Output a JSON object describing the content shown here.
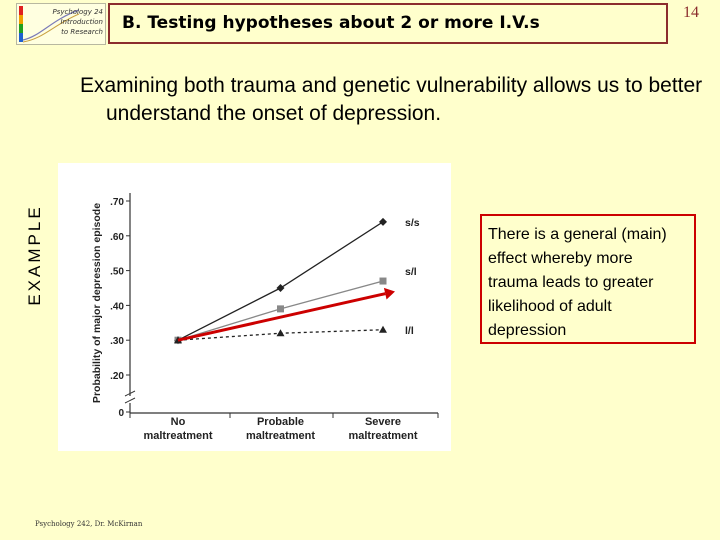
{
  "logo": {
    "line1": "Psychology 24",
    "line2": "Introduction",
    "line3": "to Research",
    "colors": [
      "#e02020",
      "#f0a000",
      "#20a020",
      "#2060d0"
    ]
  },
  "header": {
    "title": "B. Testing hypotheses about 2 or more I.V.s",
    "page_number": "14"
  },
  "intro_text": "Examining both trauma and genetic vulnerability allows us to better understand the onset of depression.",
  "side_label": "EXAMPLE",
  "callout_text": "There is a general (main) effect whereby more trauma leads to greater likelihood of adult depression",
  "footer": "Psychology 242, Dr. McKirnan",
  "chart_data": {
    "type": "line",
    "ylabel": "Probability of major depression episode",
    "categories": [
      [
        "No",
        "maltreatment"
      ],
      [
        "Probable",
        "maltreatment"
      ],
      [
        "Severe",
        "maltreatment"
      ]
    ],
    "ylim": [
      0,
      0.7
    ],
    "yticks": [
      ".70",
      ".60",
      ".50",
      ".40",
      ".30",
      ".20",
      "0"
    ],
    "ytick_values": [
      0.7,
      0.6,
      0.5,
      0.4,
      0.3,
      0.2,
      0
    ],
    "axis_break": true,
    "series": [
      {
        "name": "s/s",
        "values": [
          0.3,
          0.45,
          0.64
        ],
        "color": "#222222",
        "marker": "diamond",
        "dash": false
      },
      {
        "name": "s/l",
        "values": [
          0.3,
          0.39,
          0.47
        ],
        "color": "#888888",
        "marker": "square",
        "dash": false
      },
      {
        "name": "l/l",
        "values": [
          0.3,
          0.32,
          0.33
        ],
        "color": "#222222",
        "marker": "triangle",
        "dash": true
      }
    ],
    "annotation": {
      "type": "arrow",
      "color": "#cc0000",
      "from": [
        0,
        0.3
      ],
      "to": [
        2,
        0.44
      ]
    }
  }
}
